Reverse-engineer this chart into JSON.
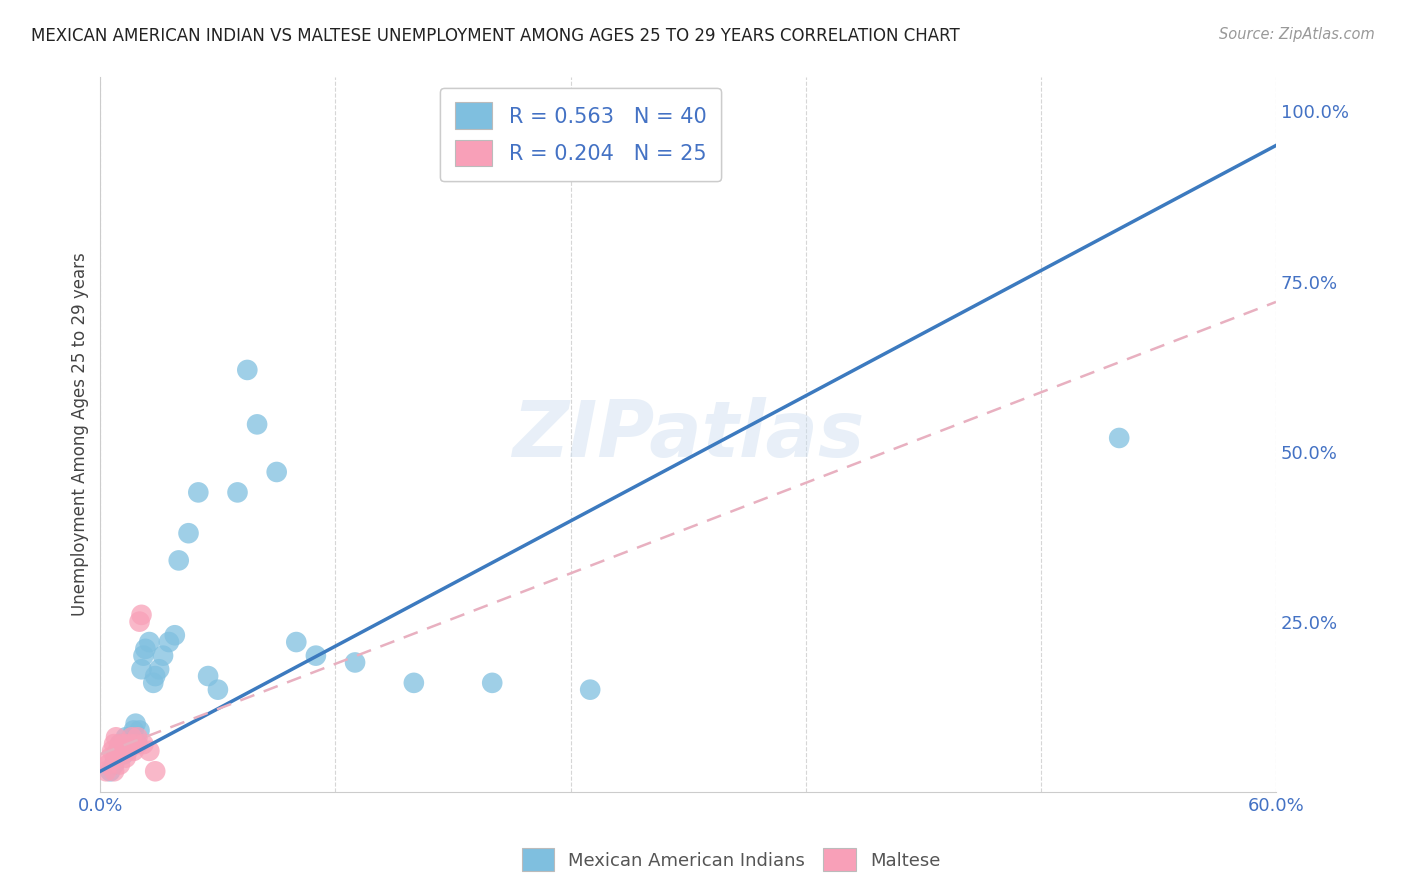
{
  "title": "MEXICAN AMERICAN INDIAN VS MALTESE UNEMPLOYMENT AMONG AGES 25 TO 29 YEARS CORRELATION CHART",
  "source": "Source: ZipAtlas.com",
  "ylabel": "Unemployment Among Ages 25 to 29 years",
  "xlim": [
    0.0,
    0.6
  ],
  "ylim": [
    0.0,
    1.05
  ],
  "legend1_label": "R = 0.563   N = 40",
  "legend2_label": "R = 0.204   N = 25",
  "legend3_label": "Mexican American Indians",
  "legend4_label": "Maltese",
  "blue_color": "#7fbfdf",
  "pink_color": "#f8a0b8",
  "blue_line_color": "#3c7abf",
  "pink_line_color": "#e8b0c0",
  "watermark": "ZIPatlas",
  "blue_scatter_x": [
    0.005,
    0.007,
    0.008,
    0.009,
    0.01,
    0.011,
    0.012,
    0.013,
    0.015,
    0.016,
    0.017,
    0.018,
    0.019,
    0.02,
    0.021,
    0.022,
    0.023,
    0.025,
    0.027,
    0.028,
    0.03,
    0.032,
    0.035,
    0.038,
    0.04,
    0.045,
    0.05,
    0.055,
    0.06,
    0.07,
    0.075,
    0.08,
    0.09,
    0.1,
    0.11,
    0.13,
    0.16,
    0.2,
    0.25,
    0.52
  ],
  "blue_scatter_y": [
    0.03,
    0.04,
    0.05,
    0.06,
    0.07,
    0.065,
    0.055,
    0.08,
    0.07,
    0.08,
    0.09,
    0.1,
    0.07,
    0.09,
    0.18,
    0.2,
    0.21,
    0.22,
    0.16,
    0.17,
    0.18,
    0.2,
    0.22,
    0.23,
    0.34,
    0.38,
    0.44,
    0.17,
    0.15,
    0.44,
    0.62,
    0.54,
    0.47,
    0.22,
    0.2,
    0.19,
    0.16,
    0.16,
    0.15,
    0.52
  ],
  "pink_scatter_x": [
    0.003,
    0.004,
    0.005,
    0.006,
    0.007,
    0.007,
    0.008,
    0.008,
    0.009,
    0.01,
    0.01,
    0.011,
    0.012,
    0.013,
    0.014,
    0.015,
    0.016,
    0.017,
    0.018,
    0.019,
    0.02,
    0.021,
    0.022,
    0.025,
    0.028
  ],
  "pink_scatter_y": [
    0.03,
    0.04,
    0.05,
    0.06,
    0.03,
    0.07,
    0.05,
    0.08,
    0.06,
    0.04,
    0.07,
    0.06,
    0.07,
    0.05,
    0.06,
    0.07,
    0.08,
    0.06,
    0.07,
    0.08,
    0.25,
    0.26,
    0.07,
    0.06,
    0.03
  ],
  "blue_line_x0": 0.0,
  "blue_line_y0": 0.03,
  "blue_line_x1": 0.6,
  "blue_line_y1": 0.95,
  "pink_line_x0": 0.0,
  "pink_line_y0": 0.055,
  "pink_line_x1": 0.6,
  "pink_line_y1": 0.72
}
